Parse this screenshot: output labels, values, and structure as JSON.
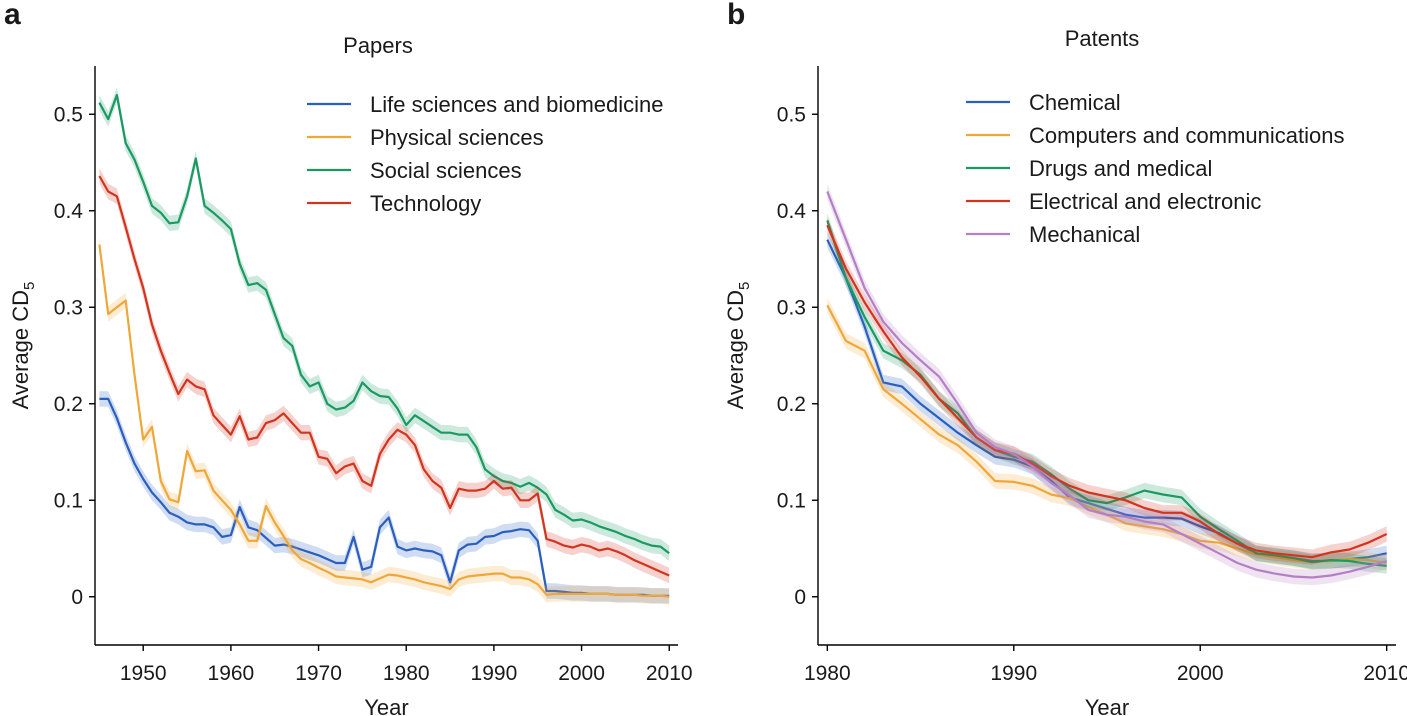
{
  "chart_data": [
    {
      "panel": "a",
      "type": "line",
      "title": "Papers",
      "xlabel": "Year",
      "ylabel": "Average CD",
      "ylabel_sub": "5",
      "xlim": [
        1944.5,
        2011
      ],
      "ylim": [
        -0.05,
        0.55
      ],
      "xticks": [
        1950,
        1960,
        1970,
        1980,
        1990,
        2000,
        2010
      ],
      "yticks": [
        0,
        0.1,
        0.2,
        0.3,
        0.4,
        0.5
      ],
      "ytick_labels": [
        "0",
        "0.1",
        "0.2",
        "0.3",
        "0.4",
        "0.5"
      ],
      "legend_position": "top-right",
      "grid": false,
      "band": 0.008,
      "series": [
        {
          "name": "Life sciences and biomedicine",
          "color": "#2a5fbf",
          "x": [
            1945,
            1946,
            1947,
            1948,
            1949,
            1950,
            1951,
            1952,
            1953,
            1954,
            1955,
            1956,
            1957,
            1958,
            1959,
            1960,
            1961,
            1962,
            1963,
            1964,
            1965,
            1966,
            1967,
            1968,
            1969,
            1970,
            1971,
            1972,
            1973,
            1974,
            1975,
            1976,
            1977,
            1978,
            1979,
            1980,
            1981,
            1982,
            1983,
            1984,
            1985,
            1986,
            1987,
            1988,
            1989,
            1990,
            1991,
            1992,
            1993,
            1994,
            1995,
            1996,
            1997,
            1998,
            1999,
            2000,
            2001,
            2002,
            2003,
            2004,
            2005,
            2006,
            2007,
            2008,
            2009,
            2010
          ],
          "y": [
            0.205,
            0.205,
            0.185,
            0.16,
            0.138,
            0.122,
            0.108,
            0.098,
            0.087,
            0.083,
            0.077,
            0.075,
            0.075,
            0.072,
            0.062,
            0.064,
            0.093,
            0.072,
            0.069,
            0.061,
            0.053,
            0.054,
            0.052,
            0.049,
            0.046,
            0.043,
            0.039,
            0.035,
            0.035,
            0.062,
            0.028,
            0.031,
            0.072,
            0.082,
            0.052,
            0.048,
            0.05,
            0.048,
            0.047,
            0.043,
            0.015,
            0.048,
            0.054,
            0.055,
            0.062,
            0.063,
            0.067,
            0.068,
            0.07,
            0.069,
            0.058,
            0.006,
            0.006,
            0.005,
            0.004,
            0.004,
            0.003,
            0.003,
            0.003,
            0.002,
            0.002,
            0.002,
            0.002,
            0.001,
            0.001,
            0.001
          ]
        },
        {
          "name": "Physical sciences",
          "color": "#f0a73a",
          "x": [
            1945,
            1946,
            1947,
            1948,
            1949,
            1950,
            1951,
            1952,
            1953,
            1954,
            1955,
            1956,
            1957,
            1958,
            1959,
            1960,
            1961,
            1962,
            1963,
            1964,
            1965,
            1966,
            1967,
            1968,
            1969,
            1970,
            1971,
            1972,
            1973,
            1974,
            1975,
            1976,
            1977,
            1978,
            1979,
            1980,
            1981,
            1982,
            1983,
            1984,
            1985,
            1986,
            1987,
            1988,
            1989,
            1990,
            1991,
            1992,
            1993,
            1994,
            1995,
            1996,
            1997,
            1998,
            1999,
            2000,
            2001,
            2002,
            2003,
            2004,
            2005,
            2006,
            2007,
            2008,
            2009,
            2010
          ],
          "y": [
            0.365,
            0.293,
            0.3,
            0.307,
            0.23,
            0.163,
            0.176,
            0.12,
            0.101,
            0.098,
            0.151,
            0.13,
            0.131,
            0.11,
            0.1,
            0.09,
            0.075,
            0.058,
            0.058,
            0.094,
            0.077,
            0.063,
            0.048,
            0.039,
            0.035,
            0.03,
            0.026,
            0.021,
            0.02,
            0.019,
            0.018,
            0.015,
            0.019,
            0.023,
            0.022,
            0.02,
            0.018,
            0.015,
            0.013,
            0.011,
            0.008,
            0.018,
            0.021,
            0.022,
            0.023,
            0.024,
            0.024,
            0.02,
            0.02,
            0.018,
            0.013,
            0.002,
            0.003,
            0.003,
            0.003,
            0.003,
            0.003,
            0.003,
            0.003,
            0.002,
            0.002,
            0.002,
            0.001,
            0.001,
            0.001,
            0.0
          ]
        },
        {
          "name": "Social sciences",
          "color": "#1a9a62",
          "x": [
            1945,
            1946,
            1947,
            1948,
            1949,
            1950,
            1951,
            1952,
            1953,
            1954,
            1955,
            1956,
            1957,
            1958,
            1959,
            1960,
            1961,
            1962,
            1963,
            1964,
            1965,
            1966,
            1967,
            1968,
            1969,
            1970,
            1971,
            1972,
            1973,
            1974,
            1975,
            1976,
            1977,
            1978,
            1979,
            1980,
            1981,
            1982,
            1983,
            1984,
            1985,
            1986,
            1987,
            1988,
            1989,
            1990,
            1991,
            1992,
            1993,
            1994,
            1995,
            1996,
            1997,
            1998,
            1999,
            2000,
            2001,
            2002,
            2003,
            2004,
            2005,
            2006,
            2007,
            2008,
            2009,
            2010
          ],
          "y": [
            0.512,
            0.495,
            0.52,
            0.47,
            0.453,
            0.43,
            0.405,
            0.398,
            0.387,
            0.388,
            0.415,
            0.454,
            0.405,
            0.398,
            0.39,
            0.381,
            0.345,
            0.323,
            0.325,
            0.318,
            0.293,
            0.268,
            0.26,
            0.23,
            0.218,
            0.222,
            0.2,
            0.194,
            0.196,
            0.203,
            0.222,
            0.213,
            0.208,
            0.207,
            0.195,
            0.178,
            0.188,
            0.182,
            0.176,
            0.17,
            0.17,
            0.168,
            0.168,
            0.155,
            0.132,
            0.125,
            0.12,
            0.118,
            0.114,
            0.118,
            0.113,
            0.106,
            0.09,
            0.085,
            0.079,
            0.08,
            0.077,
            0.073,
            0.07,
            0.067,
            0.063,
            0.06,
            0.056,
            0.053,
            0.052,
            0.045
          ]
        },
        {
          "name": "Technology",
          "color": "#d2341e",
          "x": [
            1945,
            1946,
            1947,
            1948,
            1949,
            1950,
            1951,
            1952,
            1953,
            1954,
            1955,
            1956,
            1957,
            1958,
            1959,
            1960,
            1961,
            1962,
            1963,
            1964,
            1965,
            1966,
            1967,
            1968,
            1969,
            1970,
            1971,
            1972,
            1973,
            1974,
            1975,
            1976,
            1977,
            1978,
            1979,
            1980,
            1981,
            1982,
            1983,
            1984,
            1985,
            1986,
            1987,
            1988,
            1989,
            1990,
            1991,
            1992,
            1993,
            1994,
            1995,
            1996,
            1997,
            1998,
            1999,
            2000,
            2001,
            2002,
            2003,
            2004,
            2005,
            2006,
            2007,
            2008,
            2009,
            2010
          ],
          "y": [
            0.436,
            0.42,
            0.415,
            0.383,
            0.35,
            0.32,
            0.282,
            0.255,
            0.232,
            0.21,
            0.225,
            0.218,
            0.215,
            0.188,
            0.178,
            0.168,
            0.187,
            0.163,
            0.165,
            0.18,
            0.183,
            0.19,
            0.18,
            0.17,
            0.17,
            0.145,
            0.143,
            0.128,
            0.135,
            0.138,
            0.12,
            0.115,
            0.148,
            0.163,
            0.173,
            0.168,
            0.157,
            0.132,
            0.12,
            0.113,
            0.092,
            0.112,
            0.11,
            0.11,
            0.112,
            0.12,
            0.112,
            0.113,
            0.1,
            0.1,
            0.107,
            0.06,
            0.057,
            0.053,
            0.051,
            0.054,
            0.052,
            0.048,
            0.05,
            0.047,
            0.043,
            0.038,
            0.034,
            0.03,
            0.026,
            0.022
          ]
        }
      ]
    },
    {
      "panel": "b",
      "type": "line",
      "title": "Patents",
      "xlabel": "Year",
      "ylabel": "Average CD",
      "ylabel_sub": "5",
      "xlim": [
        1979.5,
        2010.5
      ],
      "ylim": [
        -0.05,
        0.55
      ],
      "xticks": [
        1980,
        1990,
        2000,
        2010
      ],
      "yticks": [
        0,
        0.1,
        0.2,
        0.3,
        0.4,
        0.5
      ],
      "ytick_labels": [
        "0",
        "0.1",
        "0.2",
        "0.3",
        "0.4",
        "0.5"
      ],
      "legend_position": "top-right",
      "grid": false,
      "band": 0.008,
      "series": [
        {
          "name": "Chemical",
          "color": "#2a5fbf",
          "x": [
            1980,
            1981,
            1982,
            1983,
            1984,
            1985,
            1986,
            1987,
            1988,
            1989,
            1990,
            1991,
            1992,
            1993,
            1994,
            1995,
            1996,
            1997,
            1998,
            1999,
            2000,
            2001,
            2002,
            2003,
            2004,
            2005,
            2006,
            2007,
            2008,
            2009,
            2010
          ],
          "y": [
            0.37,
            0.33,
            0.28,
            0.222,
            0.218,
            0.2,
            0.185,
            0.17,
            0.157,
            0.145,
            0.142,
            0.135,
            0.12,
            0.103,
            0.097,
            0.091,
            0.085,
            0.082,
            0.082,
            0.081,
            0.073,
            0.066,
            0.055,
            0.045,
            0.042,
            0.04,
            0.037,
            0.037,
            0.039,
            0.041,
            0.045
          ]
        },
        {
          "name": "Computers and communications",
          "color": "#f0a73a",
          "x": [
            1980,
            1981,
            1982,
            1983,
            1984,
            1985,
            1986,
            1987,
            1988,
            1989,
            1990,
            1991,
            1992,
            1993,
            1994,
            1995,
            1996,
            1997,
            1998,
            1999,
            2000,
            2001,
            2002,
            2003,
            2004,
            2005,
            2006,
            2007,
            2008,
            2009,
            2010
          ],
          "y": [
            0.302,
            0.265,
            0.255,
            0.215,
            0.2,
            0.184,
            0.168,
            0.157,
            0.14,
            0.12,
            0.119,
            0.115,
            0.106,
            0.102,
            0.093,
            0.085,
            0.076,
            0.073,
            0.07,
            0.065,
            0.058,
            0.056,
            0.05,
            0.044,
            0.041,
            0.038,
            0.036,
            0.037,
            0.039,
            0.038,
            0.035
          ]
        },
        {
          "name": "Drugs and medical",
          "color": "#1a9a62",
          "x": [
            1980,
            1981,
            1982,
            1983,
            1984,
            1985,
            1986,
            1987,
            1988,
            1989,
            1990,
            1991,
            1992,
            1993,
            1994,
            1995,
            1996,
            1997,
            1998,
            1999,
            2000,
            2001,
            2002,
            2003,
            2004,
            2005,
            2006,
            2007,
            2008,
            2009,
            2010
          ],
          "y": [
            0.39,
            0.33,
            0.29,
            0.255,
            0.245,
            0.23,
            0.205,
            0.19,
            0.165,
            0.152,
            0.145,
            0.14,
            0.127,
            0.112,
            0.1,
            0.097,
            0.103,
            0.11,
            0.106,
            0.103,
            0.083,
            0.07,
            0.058,
            0.045,
            0.043,
            0.04,
            0.036,
            0.038,
            0.037,
            0.034,
            0.032
          ]
        },
        {
          "name": "Electrical and electronic",
          "color": "#d2341e",
          "x": [
            1980,
            1981,
            1982,
            1983,
            1984,
            1985,
            1986,
            1987,
            1988,
            1989,
            1990,
            1991,
            1992,
            1993,
            1994,
            1995,
            1996,
            1997,
            1998,
            1999,
            2000,
            2001,
            2002,
            2003,
            2004,
            2005,
            2006,
            2007,
            2008,
            2009,
            2010
          ],
          "y": [
            0.385,
            0.34,
            0.305,
            0.275,
            0.248,
            0.228,
            0.205,
            0.185,
            0.165,
            0.152,
            0.148,
            0.138,
            0.125,
            0.115,
            0.108,
            0.104,
            0.1,
            0.092,
            0.087,
            0.087,
            0.078,
            0.065,
            0.055,
            0.048,
            0.045,
            0.043,
            0.041,
            0.046,
            0.049,
            0.056,
            0.065
          ]
        },
        {
          "name": "Mechanical",
          "color": "#b47fc5",
          "x": [
            1980,
            1981,
            1982,
            1983,
            1984,
            1985,
            1986,
            1987,
            1988,
            1989,
            1990,
            1991,
            1992,
            1993,
            1994,
            1995,
            1996,
            1997,
            1998,
            1999,
            2000,
            2001,
            2002,
            2003,
            2004,
            2005,
            2006,
            2007,
            2008,
            2009,
            2010
          ],
          "y": [
            0.42,
            0.37,
            0.32,
            0.285,
            0.263,
            0.245,
            0.228,
            0.2,
            0.17,
            0.155,
            0.148,
            0.135,
            0.118,
            0.105,
            0.09,
            0.085,
            0.083,
            0.078,
            0.075,
            0.065,
            0.055,
            0.045,
            0.035,
            0.028,
            0.024,
            0.021,
            0.02,
            0.022,
            0.026,
            0.031,
            0.037
          ]
        }
      ]
    }
  ]
}
